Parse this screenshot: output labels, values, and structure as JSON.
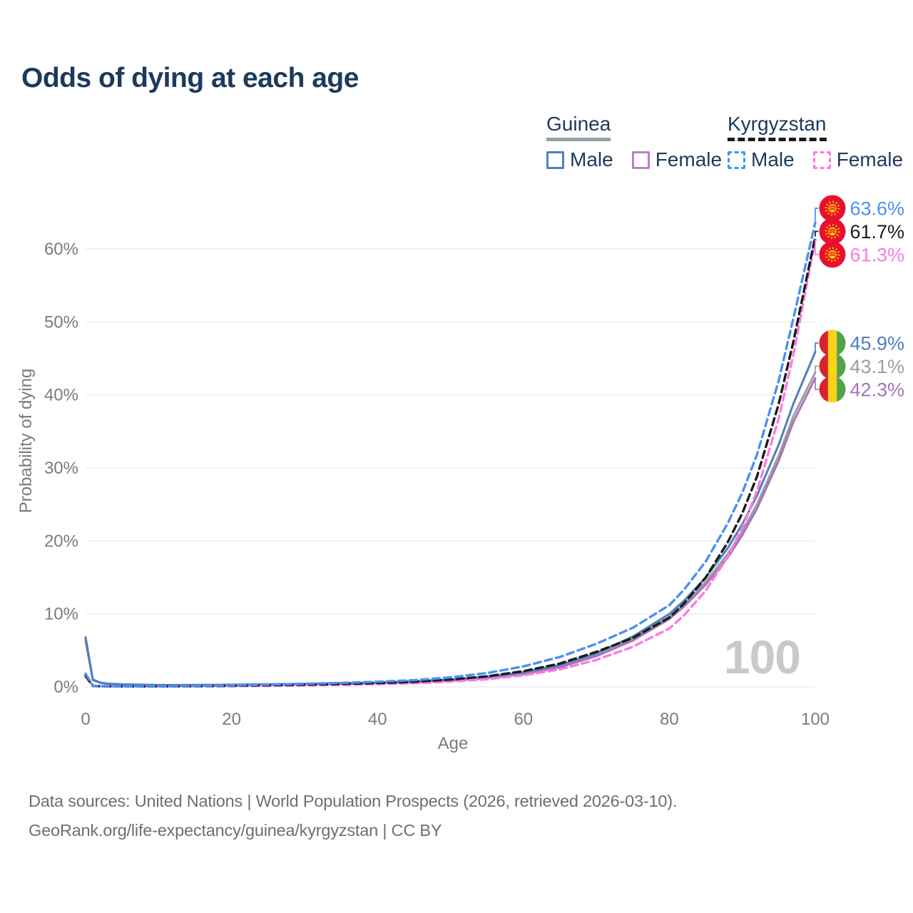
{
  "title": "Odds of dying at each age",
  "legend": {
    "groups": [
      {
        "country": "Guinea",
        "line_style": "solid",
        "underline_color": "#9aa0a3",
        "items": [
          {
            "label": "Male",
            "color": "#4d80bc"
          },
          {
            "label": "Female",
            "color": "#bc7fc4"
          }
        ]
      },
      {
        "country": "Kyrgyzstan",
        "line_style": "dashed",
        "underline_color": "#1b1b1b",
        "items": [
          {
            "label": "Male",
            "color": "#4a90f4"
          },
          {
            "label": "Female",
            "color": "#fb7ae4"
          }
        ]
      }
    ]
  },
  "chart_data": {
    "type": "line",
    "title": "Odds of dying at each age",
    "xlabel": "Age",
    "ylabel": "Probability of dying",
    "xlim": [
      0,
      100
    ],
    "ylim": [
      0,
      65
    ],
    "xticks": [
      "0",
      "20",
      "40",
      "60",
      "80",
      "100"
    ],
    "ytick_labels": [
      "0%",
      "10%",
      "20%",
      "30%",
      "40%",
      "50%",
      "60%"
    ],
    "grid": "horizontal-only",
    "legend_position": "top-right",
    "watermark_age": "100",
    "x": [
      0,
      1,
      2,
      3,
      5,
      10,
      15,
      20,
      25,
      30,
      35,
      40,
      45,
      50,
      55,
      60,
      65,
      70,
      75,
      80,
      82,
      85,
      88,
      90,
      92,
      95,
      97,
      100
    ],
    "series": [
      {
        "id": "guinea-total",
        "name": "Guinea (both sexes)",
        "country": "Guinea",
        "sex": "both",
        "color": "#9aa0a3",
        "dash": "solid",
        "flag": "guinea",
        "end_label": "43.1%",
        "values": [
          6.55,
          0.97,
          0.57,
          0.42,
          0.34,
          0.23,
          0.24,
          0.28,
          0.33,
          0.38,
          0.46,
          0.55,
          0.68,
          0.92,
          1.3,
          1.87,
          2.85,
          4.4,
          6.6,
          9.6,
          11.3,
          14.4,
          18.2,
          21.3,
          25.0,
          31.7,
          37.1,
          43.1
        ]
      },
      {
        "id": "guinea-female",
        "name": "Guinea Female",
        "country": "Guinea",
        "sex": "female",
        "color": "#a873b8",
        "dash": "solid",
        "flag": "guinea",
        "end_label": "42.3%",
        "values": [
          6.3,
          0.93,
          0.55,
          0.4,
          0.32,
          0.22,
          0.22,
          0.26,
          0.3,
          0.35,
          0.42,
          0.5,
          0.62,
          0.85,
          1.2,
          1.75,
          2.7,
          4.2,
          6.35,
          9.3,
          11.0,
          14.0,
          17.7,
          20.8,
          24.4,
          31.0,
          36.3,
          42.3
        ]
      },
      {
        "id": "guinea-male",
        "name": "Guinea Male",
        "country": "Guinea",
        "sex": "male",
        "color": "#4d80bc",
        "dash": "solid",
        "flag": "guinea",
        "end_label": "45.9%",
        "values": [
          6.8,
          1.0,
          0.6,
          0.45,
          0.35,
          0.25,
          0.26,
          0.3,
          0.36,
          0.42,
          0.5,
          0.6,
          0.75,
          1.0,
          1.4,
          2.0,
          3.0,
          4.6,
          6.9,
          10.0,
          11.8,
          15.0,
          19.0,
          22.3,
          26.2,
          33.2,
          38.8,
          45.9
        ]
      },
      {
        "id": "kyrgyzstan-female",
        "name": "Kyrgyzstan Female",
        "country": "Kyrgyzstan",
        "sex": "female",
        "color": "#fb7ae4",
        "dash": "dashed",
        "flag": "kyrgyzstan",
        "end_label": "61.3%",
        "values": [
          1.35,
          0.12,
          0.08,
          0.07,
          0.06,
          0.06,
          0.08,
          0.11,
          0.15,
          0.21,
          0.28,
          0.38,
          0.5,
          0.72,
          1.05,
          1.58,
          2.4,
          3.7,
          5.5,
          8.0,
          9.8,
          13.2,
          17.8,
          21.8,
          26.8,
          36.8,
          45.5,
          61.3
        ]
      },
      {
        "id": "kyrgyzstan-total",
        "name": "Kyrgyzstan (both sexes)",
        "country": "Kyrgyzstan",
        "sex": "both",
        "color": "#1b1b1b",
        "dash": "dashed",
        "flag": "kyrgyzstan",
        "end_label": "61.7%",
        "values": [
          1.55,
          0.14,
          0.1,
          0.08,
          0.07,
          0.07,
          0.1,
          0.15,
          0.22,
          0.3,
          0.4,
          0.52,
          0.7,
          1.0,
          1.45,
          2.15,
          3.2,
          4.8,
          6.7,
          9.5,
          11.4,
          15.0,
          19.8,
          23.8,
          28.8,
          38.8,
          47.3,
          61.7
        ]
      },
      {
        "id": "kyrgyzstan-male",
        "name": "Kyrgyzstan Male",
        "country": "Kyrgyzstan",
        "sex": "male",
        "color": "#4a90f4",
        "dash": "dashed",
        "flag": "kyrgyzstan",
        "end_label": "63.6%",
        "values": [
          1.8,
          0.16,
          0.11,
          0.09,
          0.08,
          0.08,
          0.12,
          0.2,
          0.3,
          0.42,
          0.55,
          0.7,
          0.92,
          1.3,
          1.9,
          2.8,
          4.1,
          5.9,
          8.1,
          11.2,
          13.3,
          17.2,
          22.4,
          26.6,
          31.8,
          42.0,
          50.5,
          63.6
        ]
      }
    ]
  },
  "flag_colors": {
    "kyrgyzstan": {
      "field": "#e8112d",
      "sun": "#ffcc00"
    },
    "guinea": {
      "red": "#d8232a",
      "yellow": "#fcd116",
      "green": "#52a447"
    }
  },
  "footer": {
    "line1": "Data sources: United Nations | World Population Prospects (2026, retrieved 2026-03-10).",
    "line2": "GeoRank.org/life-expectancy/guinea/kyrgyzstan | CC BY"
  }
}
